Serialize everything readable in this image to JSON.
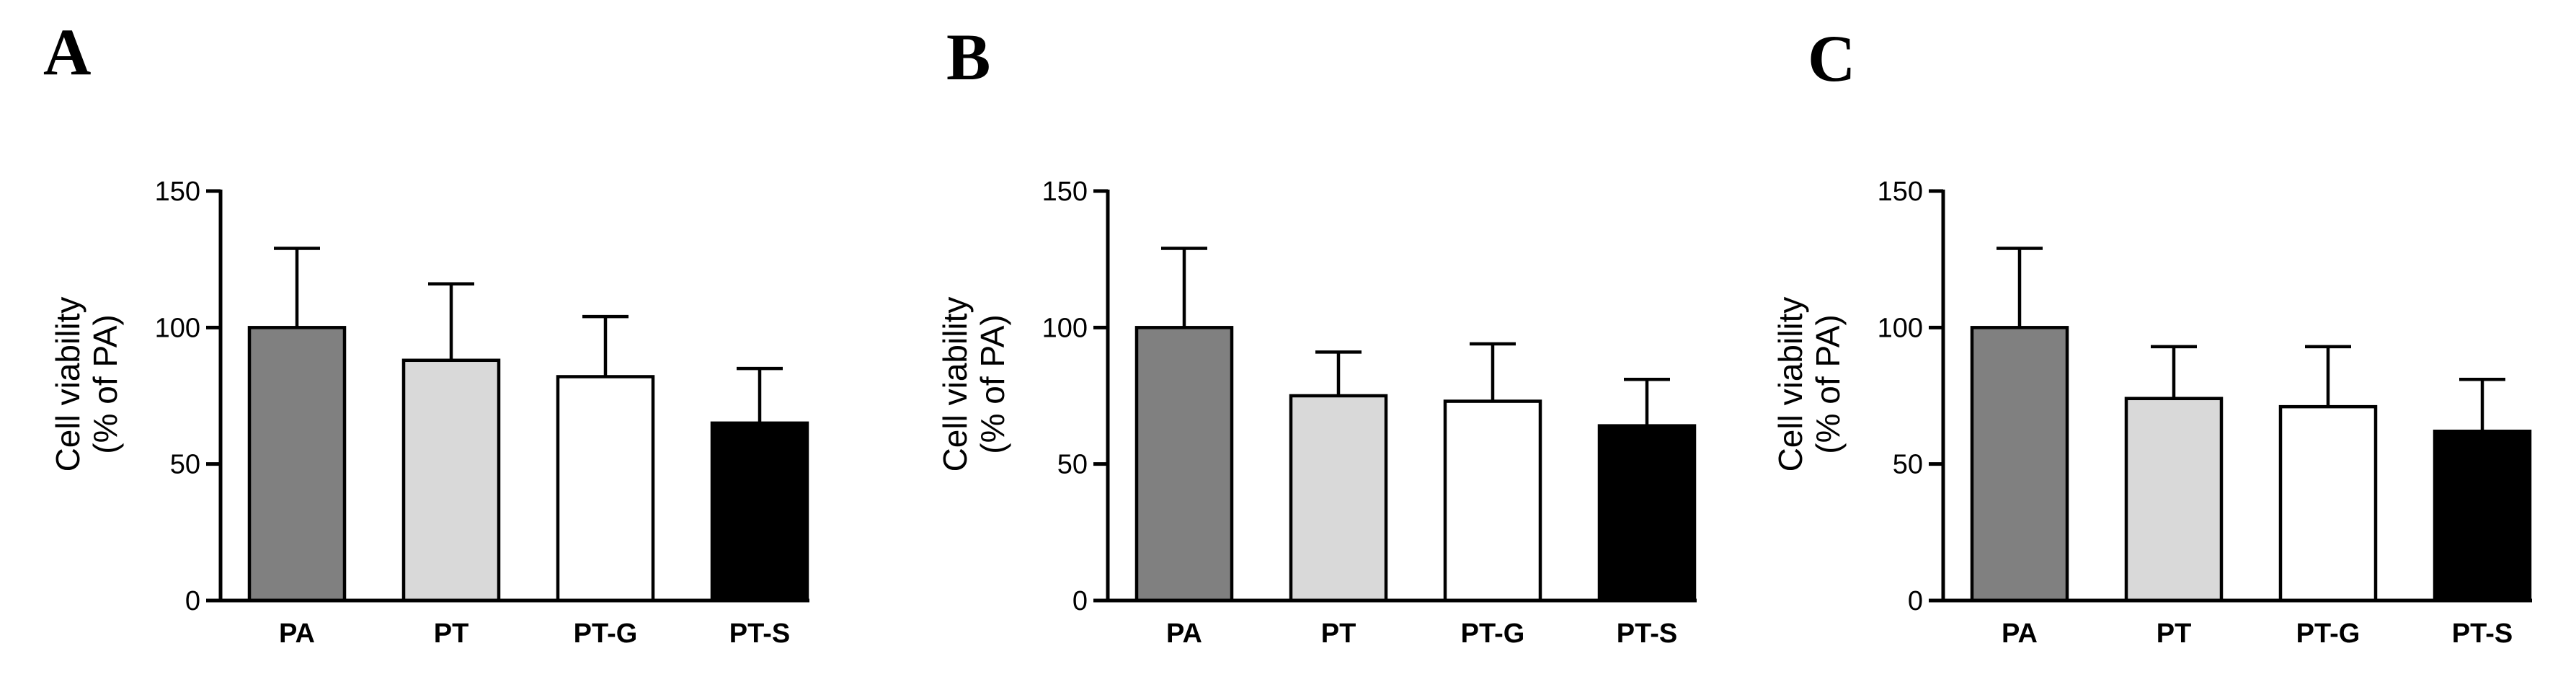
{
  "chart_data": [
    {
      "type": "bar",
      "panel_label": "A",
      "categories": [
        "PA",
        "PT",
        "PT-G",
        "PT-S"
      ],
      "values": [
        100,
        88,
        82,
        65
      ],
      "errors": [
        29,
        28,
        22,
        20
      ],
      "colors": [
        "#808080",
        "#d9d9d9",
        "#ffffff",
        "#000000"
      ],
      "ylabel_lines": [
        "Cell viability",
        "(% of PA)"
      ],
      "ylim": [
        0,
        150
      ],
      "yticks": [
        "0",
        "50",
        "100",
        "150"
      ]
    },
    {
      "type": "bar",
      "panel_label": "B",
      "categories": [
        "PA",
        "PT",
        "PT-G",
        "PT-S"
      ],
      "values": [
        100,
        75,
        73,
        64
      ],
      "errors": [
        29,
        16,
        21,
        17
      ],
      "colors": [
        "#808080",
        "#d9d9d9",
        "#ffffff",
        "#000000"
      ],
      "ylabel_lines": [
        "Cell viability",
        "(% of PA)"
      ],
      "ylim": [
        0,
        150
      ],
      "yticks": [
        "0",
        "50",
        "100",
        "150"
      ]
    },
    {
      "type": "bar",
      "panel_label": "C",
      "categories": [
        "PA",
        "PT",
        "PT-G",
        "PT-S"
      ],
      "values": [
        100,
        74,
        71,
        62
      ],
      "errors": [
        29,
        19,
        22,
        19
      ],
      "colors": [
        "#808080",
        "#d9d9d9",
        "#ffffff",
        "#000000"
      ],
      "ylabel_lines": [
        "Cell viability",
        "(% of PA)"
      ],
      "ylim": [
        0,
        150
      ],
      "yticks": [
        "0",
        "50",
        "100",
        "150"
      ]
    }
  ]
}
